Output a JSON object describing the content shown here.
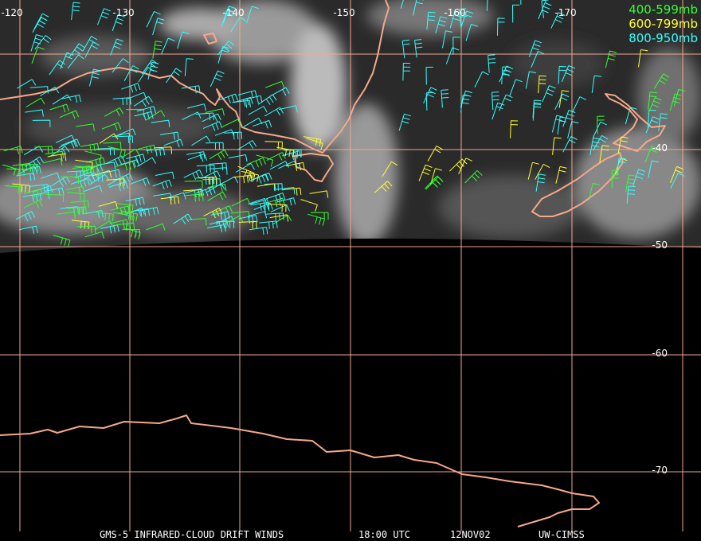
{
  "map": {
    "longitude_labels": [
      "-120",
      "-130",
      "-140",
      "-150",
      "-160",
      "-170"
    ],
    "latitude_labels": [
      "-40",
      "-50",
      "-60",
      "-70"
    ],
    "legend": [
      {
        "label": "400-599mb",
        "color": "#33ff33"
      },
      {
        "label": "600-799mb",
        "color": "#ffff33"
      },
      {
        "label": "800-950mb",
        "color": "#33ffff"
      }
    ],
    "footer": {
      "product": "GMS-5 INFRARED-CLOUD DRIFT WINDS",
      "time": "18:00 UTC",
      "date": "12NOV02",
      "source": "UW-CIMSS"
    }
  }
}
